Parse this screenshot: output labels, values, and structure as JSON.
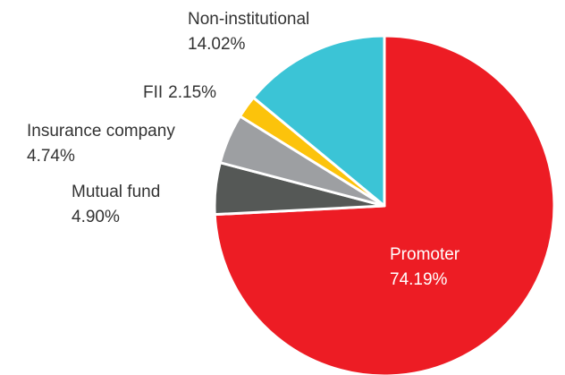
{
  "chart_data": {
    "type": "pie",
    "categories": [
      "Promoter",
      "Mutual fund",
      "Insurance company",
      "FII",
      "Non-institutional"
    ],
    "values": [
      74.19,
      4.9,
      4.74,
      2.15,
      14.02
    ],
    "value_labels": [
      "74.19%",
      "4.90%",
      "4.74%",
      "2.15%",
      "14.02%"
    ],
    "colors": [
      "#ed1c24",
      "#555856",
      "#9d9fa2",
      "#fcc30b",
      "#3bc4d6"
    ]
  }
}
